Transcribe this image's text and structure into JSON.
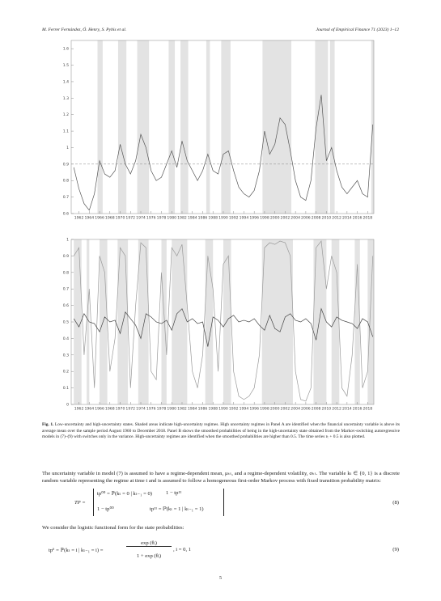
{
  "header": {
    "authors": "M. Ferrer Fernández, Ó. Henry, S. Pybis et al.",
    "journal": "Journal of Empirical Finance 71 (2023) 1–12"
  },
  "chart_data": [
    {
      "type": "line",
      "x": [
        1961,
        1962,
        1963,
        1964,
        1965,
        1966,
        1967,
        1968,
        1969,
        1970,
        1971,
        1972,
        1973,
        1974,
        1975,
        1976,
        1977,
        1978,
        1979,
        1980,
        1981,
        1982,
        1983,
        1984,
        1985,
        1986,
        1987,
        1988,
        1989,
        1990,
        1991,
        1992,
        1993,
        1994,
        1995,
        1996,
        1997,
        1998,
        1999,
        2000,
        2001,
        2002,
        2003,
        2004,
        2005,
        2006,
        2007,
        2008,
        2009,
        2010,
        2011,
        2012,
        2013,
        2014,
        2015,
        2016,
        2017,
        2018,
        2019
      ],
      "series": [
        {
          "color": "#555555",
          "values": [
            0.88,
            0.75,
            0.66,
            0.62,
            0.72,
            0.92,
            0.84,
            0.82,
            0.86,
            1.02,
            0.9,
            0.84,
            0.92,
            1.08,
            1.0,
            0.86,
            0.8,
            0.82,
            0.9,
            0.98,
            0.88,
            1.04,
            0.92,
            0.86,
            0.8,
            0.86,
            0.96,
            0.86,
            0.84,
            0.96,
            0.98,
            0.86,
            0.76,
            0.72,
            0.7,
            0.74,
            0.86,
            1.1,
            0.96,
            1.02,
            1.18,
            1.14,
            0.98,
            0.8,
            0.7,
            0.68,
            0.8,
            1.12,
            1.32,
            0.92,
            1.0,
            0.86,
            0.76,
            0.72,
            0.76,
            0.8,
            0.72,
            0.7,
            1.14
          ]
        }
      ],
      "shaded": [
        [
          1965.6,
          1966.6
        ],
        [
          1969.6,
          1971.2
        ],
        [
          1973.3,
          1975.6
        ],
        [
          1979.4,
          1980.6
        ],
        [
          1981.7,
          1983.2
        ],
        [
          1986.7,
          1987.4
        ],
        [
          1989.6,
          1991.4
        ],
        [
          1997.6,
          2003.2
        ],
        [
          2007.8,
          2010.3
        ],
        [
          2010.7,
          2011.6
        ],
        [
          2018.7,
          2019.2
        ]
      ],
      "shade_color": "#e3e3e3",
      "mean_line": 0.9,
      "xlim": [
        1960.5,
        2019.2
      ],
      "xticks": [
        1962,
        1964,
        1966,
        1968,
        1970,
        1972,
        1974,
        1976,
        1978,
        1980,
        1982,
        1984,
        1986,
        1988,
        1990,
        1992,
        1994,
        1996,
        1998,
        2000,
        2002,
        2004,
        2006,
        2008,
        2010,
        2012,
        2014,
        2016,
        2018
      ],
      "ylim": [
        0.6,
        1.65
      ],
      "yticks": [
        0.6,
        0.7,
        0.8,
        0.9,
        1,
        1.1,
        1.2,
        1.3,
        1.4,
        1.5,
        1.6
      ]
    },
    {
      "type": "line",
      "x": [
        1961,
        1962,
        1963,
        1964,
        1965,
        1966,
        1967,
        1968,
        1969,
        1970,
        1971,
        1972,
        1973,
        1974,
        1975,
        1976,
        1977,
        1978,
        1979,
        1980,
        1981,
        1982,
        1983,
        1984,
        1985,
        1986,
        1987,
        1988,
        1989,
        1990,
        1991,
        1992,
        1993,
        1994,
        1995,
        1996,
        1997,
        1998,
        1999,
        2000,
        2001,
        2002,
        2003,
        2004,
        2005,
        2006,
        2007,
        2008,
        2009,
        2010,
        2011,
        2012,
        2013,
        2014,
        2015,
        2016,
        2017,
        2018,
        2019
      ],
      "series": [
        {
          "color": "#9a9a9a",
          "values": [
            0.9,
            0.95,
            0.3,
            0.7,
            0.1,
            0.9,
            0.8,
            0.2,
            0.4,
            0.95,
            0.9,
            0.1,
            0.6,
            0.98,
            0.95,
            0.2,
            0.15,
            0.8,
            0.3,
            0.95,
            0.9,
            0.97,
            0.6,
            0.2,
            0.1,
            0.3,
            0.9,
            0.7,
            0.2,
            0.85,
            0.9,
            0.2,
            0.05,
            0.03,
            0.05,
            0.1,
            0.3,
            0.95,
            0.98,
            0.97,
            0.99,
            0.98,
            0.9,
            0.2,
            0.03,
            0.02,
            0.1,
            0.95,
            0.99,
            0.7,
            0.9,
            0.8,
            0.1,
            0.05,
            0.3,
            0.85,
            0.1,
            0.2,
            0.9
          ]
        },
        {
          "color": "#444444",
          "values": [
            0.52,
            0.47,
            0.55,
            0.5,
            0.49,
            0.44,
            0.53,
            0.5,
            0.51,
            0.43,
            0.56,
            0.52,
            0.48,
            0.4,
            0.55,
            0.53,
            0.5,
            0.49,
            0.51,
            0.45,
            0.55,
            0.58,
            0.5,
            0.52,
            0.49,
            0.5,
            0.35,
            0.53,
            0.51,
            0.47,
            0.52,
            0.54,
            0.5,
            0.51,
            0.5,
            0.52,
            0.48,
            0.45,
            0.54,
            0.46,
            0.44,
            0.53,
            0.55,
            0.51,
            0.5,
            0.52,
            0.49,
            0.39,
            0.58,
            0.5,
            0.47,
            0.53,
            0.51,
            0.5,
            0.49,
            0.46,
            0.52,
            0.5,
            0.41
          ]
        }
      ],
      "shaded": [
        [
          1961,
          1962.5
        ],
        [
          1963.5,
          1964
        ],
        [
          1966,
          1967.5
        ],
        [
          1969.5,
          1971.5
        ],
        [
          1973.5,
          1975.5
        ],
        [
          1978,
          1979
        ],
        [
          1980,
          1983
        ],
        [
          1986.5,
          1988
        ],
        [
          1990,
          1991.5
        ],
        [
          1997.5,
          2003.5
        ],
        [
          2007.5,
          2010
        ],
        [
          2011,
          2012.5
        ],
        [
          2015.5,
          2016.5
        ],
        [
          2018,
          2019.2
        ]
      ],
      "shade_color": "#e3e3e3",
      "xlim": [
        1960.5,
        2019.2
      ],
      "xticks": [
        1962,
        1964,
        1966,
        1968,
        1970,
        1972,
        1974,
        1976,
        1978,
        1980,
        1982,
        1984,
        1986,
        1988,
        1990,
        1992,
        1994,
        1996,
        1998,
        2000,
        2002,
        2004,
        2006,
        2008,
        2010,
        2012,
        2014,
        2016,
        2018
      ],
      "ylim": [
        0,
        1
      ],
      "yticks": [
        0,
        0.1,
        0.2,
        0.3,
        0.4,
        0.5,
        0.6,
        0.7,
        0.8,
        0.9,
        1
      ]
    }
  ],
  "caption": {
    "label": "Fig. 1.",
    "text": "Low-uncertainty and high-uncertainty states. Shaded areas indicate high-uncertainty regimes. High uncertainty regimes in Panel A are identified when the financial uncertainty variable is above its average mean over the sample period August 1960 to December 2018. Panel B shows the smoothed probabilities of being in the high-uncertainty state obtained from the Markov-switching autoregressive models in (7)–(9) with switches only in the variance. High-uncertainty regimes are identified when the smoothed probabilities are higher than 0.5. The time series rₜ + 0.5 is also plotted."
  },
  "body": {
    "p1": "The uncertainty variable in model (7) is assumed to have a regime-dependent mean, μₖₜ, and a regime-dependent volatility, σₖₜ. The variable kₜ ∈ {0, 1} is a discrete random variable representing the regime at time t and is assumed to follow a homogeneous first-order Markov process with fixed transition probability matrix:",
    "p2": "We consider the logistic functional form for the state probabilities:"
  },
  "eq8": {
    "lhs": "TP =",
    "a11": "tp⁰⁰ = ℙ(kₜ = 0 | kₜ₋₁ = 0)",
    "a12": "1 − tp¹¹",
    "a21": "1 − tp⁰⁰",
    "a22": "tp¹¹ = ℙ(kₜ = 1 | kₜ₋₁ = 1)",
    "number": "(8)"
  },
  "eq9": {
    "lhs": "tpⁱⁱ = ℙ(kₜ = i | kₜ₋₁ = i) =",
    "num": "exp (θᵢ)",
    "den": "1 + exp (θᵢ)",
    "tail": ",   i = 0, 1",
    "number": "(9)"
  },
  "page_number": "5"
}
